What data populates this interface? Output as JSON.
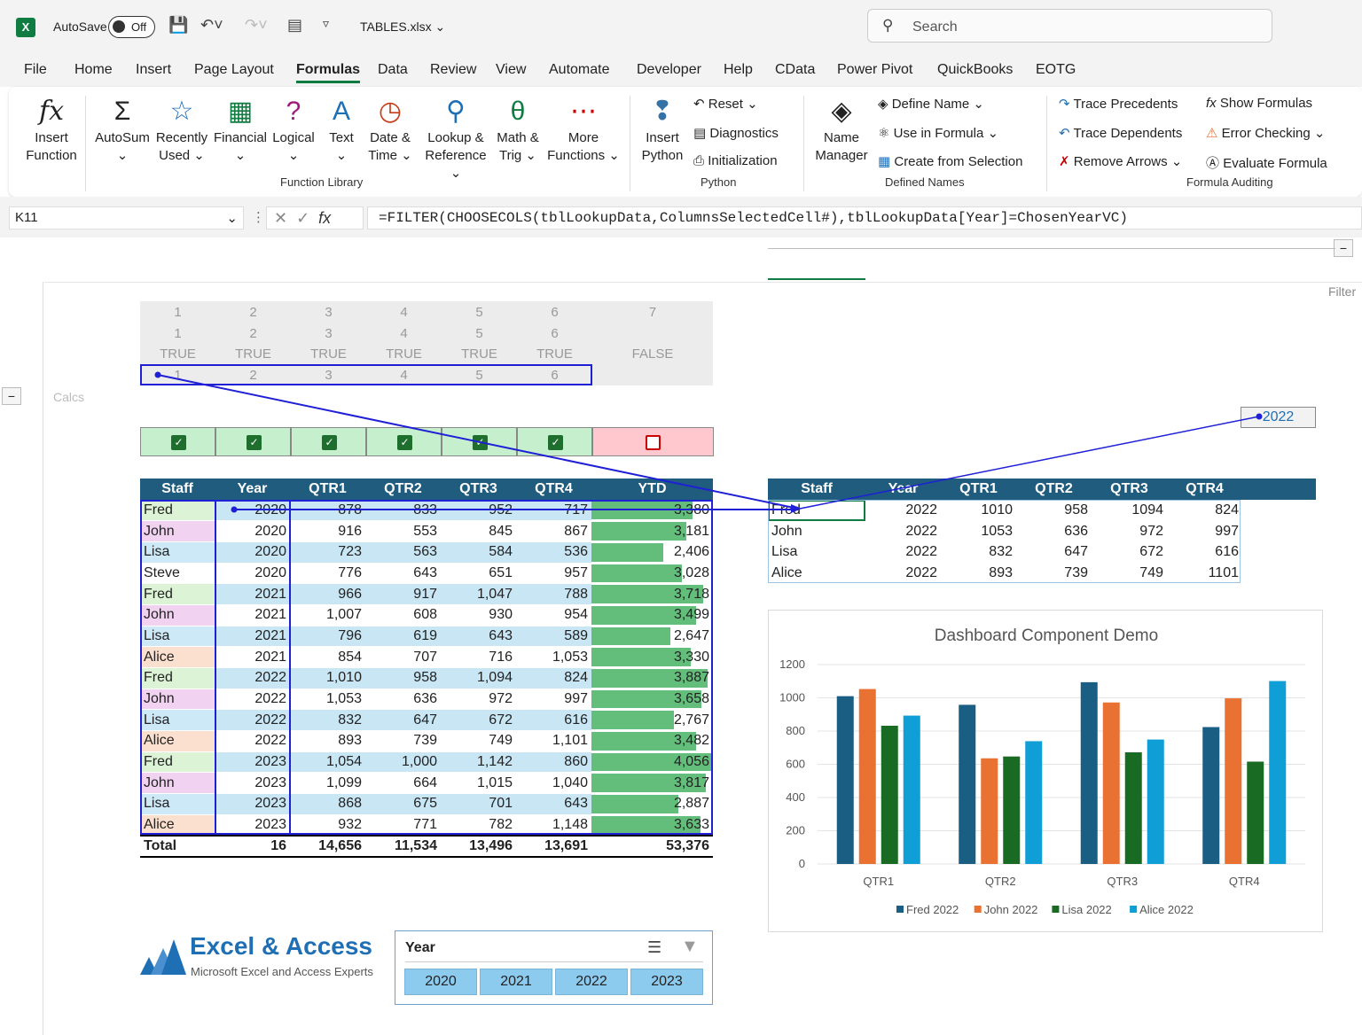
{
  "titlebar": {
    "autosave": "AutoSave",
    "toggle": "Off",
    "filename": "TABLES.xlsx",
    "search": "Search"
  },
  "menu": [
    "File",
    "Home",
    "Insert",
    "Page Layout",
    "Formulas",
    "Data",
    "Review",
    "View",
    "Automate",
    "Developer",
    "Help",
    "CData",
    "Power Pivot",
    "QuickBooks",
    "EOTG"
  ],
  "ribbon": {
    "insert_function": [
      "Insert",
      "Function"
    ],
    "autosum": "AutoSum",
    "recently": [
      "Recently",
      "Used"
    ],
    "financial": "Financial",
    "logical": "Logical",
    "text": "Text",
    "datetime": [
      "Date &",
      "Time"
    ],
    "lookup": [
      "Lookup &",
      "Reference"
    ],
    "math": [
      "Math &",
      "Trig"
    ],
    "more": [
      "More",
      "Functions"
    ],
    "group_function_library": "Function Library",
    "insert_python": [
      "Insert",
      "Python"
    ],
    "reset": "Reset",
    "diagnostics": "Diagnostics",
    "initialization": "Initialization",
    "group_python": "Python",
    "name_manager": [
      "Name",
      "Manager"
    ],
    "define_name": "Define Name",
    "use_in_formula": "Use in Formula",
    "create_from_selection": "Create from Selection",
    "group_defined_names": "Defined Names",
    "trace_precedents": "Trace Precedents",
    "trace_dependents": "Trace Dependents",
    "remove_arrows": "Remove Arrows",
    "show_formulas": "Show Formulas",
    "error_checking": "Error Checking",
    "evaluate_formula": "Evaluate Formula",
    "group_formula_auditing": "Formula Auditing"
  },
  "formula_bar": {
    "namebox": "K11",
    "formula": "=FILTER(CHOOSECOLS(tblLookupData,ColumnsSelectedCell#),tblLookupData[Year]=ChosenYearVC)"
  },
  "sheet": {
    "calcs_label": "Calcs",
    "filter_label": "Filter",
    "chosen_year": "2022",
    "calc_rows": [
      [
        "1",
        "2",
        "3",
        "4",
        "5",
        "6",
        "7"
      ],
      [
        "1",
        "2",
        "3",
        "4",
        "5",
        "6",
        ""
      ],
      [
        "TRUE",
        "TRUE",
        "TRUE",
        "TRUE",
        "TRUE",
        "TRUE",
        "FALSE"
      ],
      [
        "1",
        "2",
        "3",
        "4",
        "5",
        "6",
        ""
      ]
    ]
  },
  "big_table": {
    "headers": [
      "Staff",
      "Year",
      "QTR1",
      "QTR2",
      "QTR3",
      "QTR4",
      "YTD"
    ],
    "rows": [
      [
        "Fred",
        "2020",
        "878",
        "833",
        "952",
        "717",
        "3,380"
      ],
      [
        "John",
        "2020",
        "916",
        "553",
        "845",
        "867",
        "3,181"
      ],
      [
        "Lisa",
        "2020",
        "723",
        "563",
        "584",
        "536",
        "2,406"
      ],
      [
        "Steve",
        "2020",
        "776",
        "643",
        "651",
        "957",
        "3,028"
      ],
      [
        "Fred",
        "2021",
        "966",
        "917",
        "1,047",
        "788",
        "3,718"
      ],
      [
        "John",
        "2021",
        "1,007",
        "608",
        "930",
        "954",
        "3,499"
      ],
      [
        "Lisa",
        "2021",
        "796",
        "619",
        "643",
        "589",
        "2,647"
      ],
      [
        "Alice",
        "2021",
        "854",
        "707",
        "716",
        "1,053",
        "3,330"
      ],
      [
        "Fred",
        "2022",
        "1,010",
        "958",
        "1,094",
        "824",
        "3,887"
      ],
      [
        "John",
        "2022",
        "1,053",
        "636",
        "972",
        "997",
        "3,658"
      ],
      [
        "Lisa",
        "2022",
        "832",
        "647",
        "672",
        "616",
        "2,767"
      ],
      [
        "Alice",
        "2022",
        "893",
        "739",
        "749",
        "1,101",
        "3,482"
      ],
      [
        "Fred",
        "2023",
        "1,054",
        "1,000",
        "1,142",
        "860",
        "4,056"
      ],
      [
        "John",
        "2023",
        "1,099",
        "664",
        "1,015",
        "1,040",
        "3,817"
      ],
      [
        "Lisa",
        "2023",
        "868",
        "675",
        "701",
        "643",
        "2,887"
      ],
      [
        "Alice",
        "2023",
        "932",
        "771",
        "782",
        "1,148",
        "3,633"
      ]
    ],
    "ytd_fraction": [
      0.833,
      0.784,
      0.593,
      0.747,
      0.917,
      0.863,
      0.653,
      0.821,
      0.958,
      0.902,
      0.682,
      0.859,
      1.0,
      0.941,
      0.712,
      0.896
    ],
    "total": [
      "Total",
      "16",
      "14,656",
      "11,534",
      "13,496",
      "13,691",
      "53,376"
    ]
  },
  "small_table": {
    "headers": [
      "Staff",
      "Year",
      "QTR1",
      "QTR2",
      "QTR3",
      "QTR4"
    ],
    "rows": [
      [
        "Fred",
        "2022",
        "1010",
        "958",
        "1094",
        "824"
      ],
      [
        "John",
        "2022",
        "1053",
        "636",
        "972",
        "997"
      ],
      [
        "Lisa",
        "2022",
        "832",
        "647",
        "672",
        "616"
      ],
      [
        "Alice",
        "2022",
        "893",
        "739",
        "749",
        "1101"
      ]
    ]
  },
  "slicer": {
    "title": "Year",
    "items": [
      "2020",
      "2021",
      "2022",
      "2023"
    ]
  },
  "logo": {
    "name": "Excel & Access",
    "tagline": "Microsoft Excel and Access Experts"
  },
  "chart_data": {
    "type": "bar",
    "title": "Dashboard Component Demo",
    "categories": [
      "QTR1",
      "QTR2",
      "QTR3",
      "QTR4"
    ],
    "series": [
      {
        "name": "Fred 2022",
        "values": [
          1010,
          958,
          1094,
          824
        ],
        "color": "#1b5e84"
      },
      {
        "name": "John 2022",
        "values": [
          1053,
          636,
          972,
          997
        ],
        "color": "#e97132"
      },
      {
        "name": "Lisa 2022",
        "values": [
          832,
          647,
          672,
          616
        ],
        "color": "#196b24"
      },
      {
        "name": "Alice 2022",
        "values": [
          893,
          739,
          749,
          1101
        ],
        "color": "#0f9ed5"
      }
    ],
    "ylim": [
      0,
      1200
    ],
    "yticks": [
      "0",
      "200",
      "400",
      "600",
      "800",
      "1000",
      "1200"
    ],
    "legend": "bottom",
    "grid": true
  }
}
